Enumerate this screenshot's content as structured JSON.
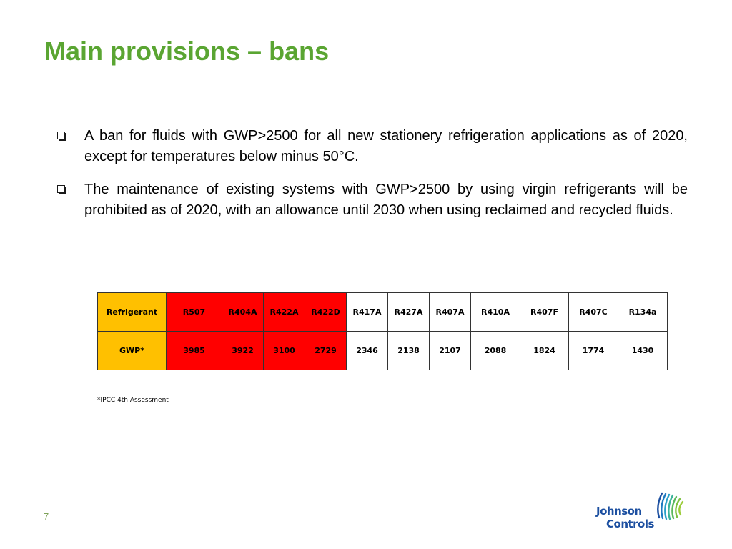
{
  "slide": {
    "title": "Main provisions – bans",
    "bullets": [
      "A ban for fluids with GWP>2500 for all new stationery refrigeration applications as of 2020, except for temperatures below minus 50°C.",
      "The maintenance of existing systems with GWP>2500 by using virgin refrigerants will be prohibited as of 2020, with an allowance until 2030 when using reclaimed and recycled fluids."
    ],
    "table": {
      "row_header_refrigerant": "Refrigerant",
      "row_header_gwp": "GWP*",
      "refrigerants": [
        "R507",
        "R404A",
        "R422A",
        "R422D",
        "R417A",
        "R427A",
        "R407A",
        "R410A",
        "R407F",
        "R407C",
        "R134a"
      ],
      "gwp": [
        "3985",
        "3922",
        "3100",
        "2729",
        "2346",
        "2138",
        "2107",
        "2088",
        "1824",
        "1774",
        "1430"
      ],
      "colors": {
        "header": "#ffc000",
        "above_threshold": "#ff0000",
        "below_threshold": "#ffffff"
      }
    },
    "footnote": "*IPCC 4th Assessment",
    "page_number": "7",
    "logo": {
      "line1": "Johnson",
      "line2": "Controls"
    },
    "colors": {
      "title": "#5aa532",
      "rule": "#c6d09a",
      "logo": "#1c4fa0"
    },
    "icons": {
      "bullet": "checkbox-bullet-icon",
      "logo_mark": "johnson-controls-logo-icon"
    }
  }
}
